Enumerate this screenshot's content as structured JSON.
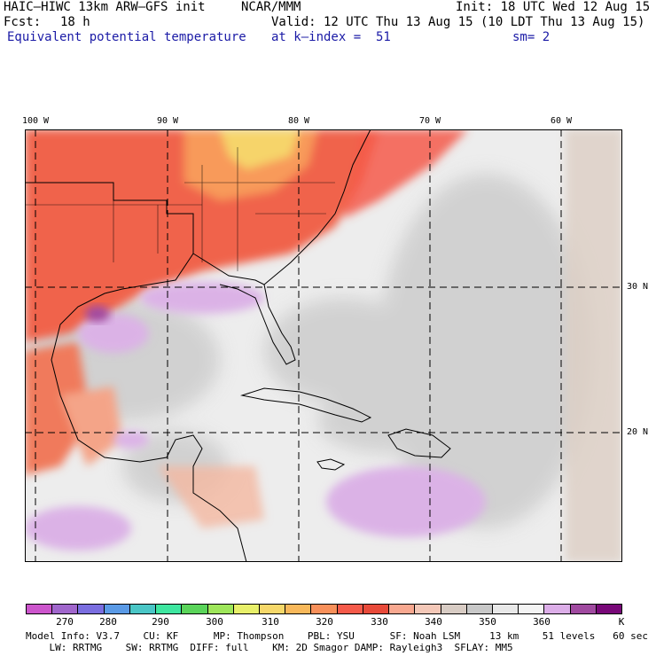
{
  "header": {
    "model": "HAIC–HIWC 13km ARW–GFS init",
    "org": "NCAR/MMM",
    "init": "Init: 18 UTC Wed 12 Aug 15",
    "fcst_label": "Fcst:",
    "fcst_value": "18 h",
    "valid": "Valid: 12 UTC Thu 13 Aug 15 (10 LDT Thu 13 Aug 15)",
    "field": "Equivalent potential temperature",
    "level": "at k–index =  51",
    "smooth": "sm= 2"
  },
  "map": {
    "lon_labels": [
      "100 W",
      "90 W",
      "80 W",
      "70 W",
      "60 W"
    ],
    "lat_labels": [
      "30 N",
      "20 N"
    ]
  },
  "colorbar": {
    "labels": [
      "270",
      "280",
      "290",
      "300",
      "310",
      "320",
      "330",
      "340",
      "350",
      "360"
    ],
    "unit": "K",
    "colors": [
      "#cc55cc",
      "#a066cc",
      "#7a6ee0",
      "#5a9ae6",
      "#4ac6c6",
      "#3ee6a0",
      "#5ad45a",
      "#9ee65a",
      "#e8f06a",
      "#f6d86a",
      "#f8b85a",
      "#f8905a",
      "#f55a4a",
      "#e84a3a",
      "#f8a890",
      "#f4c8b8",
      "#d8ccc4",
      "#c8c8c8",
      "#e8e8e8",
      "#f4f4f4",
      "#dcaee8",
      "#a04aa0",
      "#780878"
    ]
  },
  "footer": {
    "line1": "Model Info: V3.7    CU: KF      MP: Thompson    PBL: YSU      SF: Noah LSM     13 km    51 levels   60 sec",
    "line2": "    LW: RRTMG    SW: RRTMG  DIFF: full    KM: 2D Smagor DAMP: Rayleigh3  SFLAY: MM5"
  }
}
